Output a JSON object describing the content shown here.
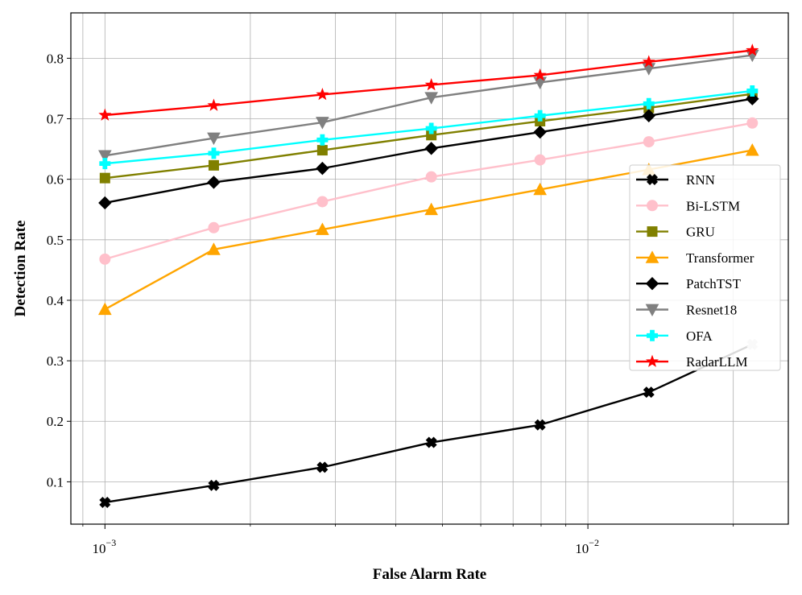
{
  "chart_data": {
    "type": "line",
    "xscale": "log",
    "xlabel": "False Alarm Rate",
    "ylabel": "Detection Rate",
    "xlim": [
      0.00085,
      0.026
    ],
    "ylim": [
      0.03,
      0.875
    ],
    "grid": true,
    "legend_position": "center-right",
    "yticks": [
      0.1,
      0.2,
      0.3,
      0.4,
      0.5,
      0.6,
      0.7,
      0.8
    ],
    "ytick_labels": [
      "0.1",
      "0.2",
      "0.3",
      "0.4",
      "0.5",
      "0.6",
      "0.7",
      "0.8"
    ],
    "xticks_major": [
      {
        "value": 0.001,
        "base": "10",
        "exp": "−3"
      },
      {
        "value": 0.01,
        "base": "10",
        "exp": "−2"
      }
    ],
    "xticks_minor": [
      0.0009,
      0.002,
      0.003,
      0.004,
      0.005,
      0.006,
      0.007,
      0.008,
      0.009,
      0.02
    ],
    "x": [
      0.001,
      0.00168,
      0.00282,
      0.00474,
      0.00796,
      0.01337,
      0.0219
    ],
    "series": [
      {
        "name": "RNN",
        "color": "#000000",
        "marker": "x-filled",
        "values": [
          0.066,
          0.094,
          0.124,
          0.165,
          0.194,
          0.248,
          0.327
        ],
        "last_point_color": "#d3d3d3"
      },
      {
        "name": "Bi-LSTM",
        "color": "#ffc0cb",
        "marker": "circle",
        "values": [
          0.468,
          0.52,
          0.563,
          0.604,
          0.632,
          0.662,
          0.693
        ]
      },
      {
        "name": "GRU",
        "color": "#808000",
        "marker": "square",
        "values": [
          0.602,
          0.623,
          0.648,
          0.673,
          0.696,
          0.718,
          0.741
        ]
      },
      {
        "name": "Transformer",
        "color": "#ffa500",
        "marker": "triangle-up",
        "values": [
          0.385,
          0.484,
          0.517,
          0.55,
          0.583,
          0.616,
          0.648
        ]
      },
      {
        "name": "PatchTST",
        "color": "#000000",
        "marker": "diamond",
        "values": [
          0.561,
          0.595,
          0.618,
          0.651,
          0.678,
          0.705,
          0.733
        ]
      },
      {
        "name": "Resnet18",
        "color": "#808080",
        "marker": "triangle-down",
        "values": [
          0.639,
          0.668,
          0.694,
          0.735,
          0.76,
          0.783,
          0.805
        ]
      },
      {
        "name": "OFA",
        "color": "#00ffff",
        "marker": "plus-filled",
        "values": [
          0.626,
          0.643,
          0.665,
          0.684,
          0.705,
          0.725,
          0.746
        ]
      },
      {
        "name": "RadarLLM",
        "color": "#ff0000",
        "marker": "star",
        "values": [
          0.706,
          0.722,
          0.74,
          0.756,
          0.772,
          0.794,
          0.813
        ]
      }
    ]
  }
}
